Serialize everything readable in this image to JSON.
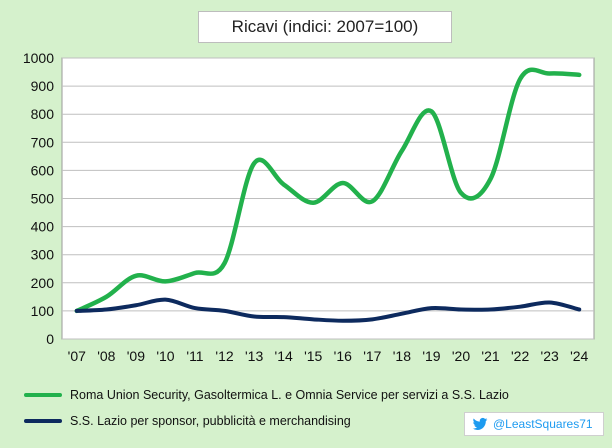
{
  "title": "Ricavi (indici: 2007=100)",
  "credit": "@LeastSquares71",
  "colors": {
    "background": "#d5f1cc",
    "plot_area": "#ffffff",
    "grid": "#bfbfbf",
    "series_green": "#22b14c",
    "series_navy": "#0d2a5e",
    "twitter_blue": "#1d9bf0"
  },
  "chart_data": {
    "type": "line",
    "title": "Ricavi (indici: 2007=100)",
    "xlabel": "",
    "ylabel": "",
    "ylim": [
      0,
      1000
    ],
    "yticks": [
      "0",
      "100",
      "200",
      "300",
      "400",
      "500",
      "600",
      "700",
      "800",
      "900",
      "1000"
    ],
    "categories": [
      "'07",
      "'08",
      "'09",
      "'10",
      "'11",
      "'12",
      "'13",
      "'14",
      "'15",
      "'16",
      "'17",
      "'18",
      "'19",
      "'20",
      "'21",
      "'22",
      "'23",
      "'24"
    ],
    "grid": true,
    "legend_position": "bottom",
    "series": [
      {
        "name": "Roma Union Security, Gasoltermica L. e Omnia Service per servizi a S.S. Lazio",
        "color": "#22b14c",
        "values": [
          100,
          150,
          225,
          205,
          235,
          270,
          625,
          550,
          485,
          555,
          490,
          670,
          810,
          520,
          570,
          925,
          945,
          940
        ]
      },
      {
        "name": "S.S. Lazio per sponsor, pubblicità e merchandising",
        "color": "#0d2a5e",
        "values": [
          100,
          105,
          120,
          140,
          110,
          100,
          80,
          78,
          70,
          65,
          70,
          90,
          110,
          105,
          105,
          115,
          130,
          105
        ]
      }
    ]
  }
}
